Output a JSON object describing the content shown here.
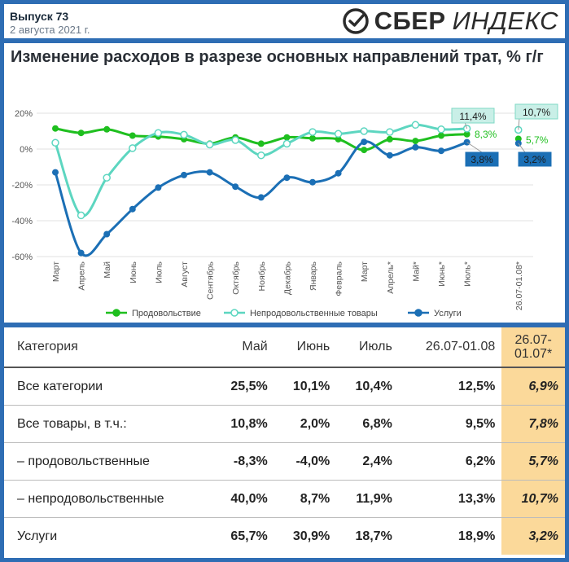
{
  "header": {
    "issue": "Выпуск 73",
    "date": "2 августа 2021 г.",
    "logo_sber": "СБЕР",
    "logo_index": "ИНДЕКС"
  },
  "chart_data": {
    "type": "line",
    "title": "Изменение расходов в разрезе основных направлений трат, % г/г",
    "categories": [
      "Март",
      "Апрель",
      "Май",
      "Июнь",
      "Июль",
      "Август",
      "Сентябрь",
      "Октябрь",
      "Ноябрь",
      "Декабрь",
      "Январь",
      "Февраль",
      "Март",
      "Апрель*",
      "Май*",
      "Июнь*",
      "Июль*",
      "",
      "26.07-01.08*"
    ],
    "yticks": [
      "20%",
      "0%",
      "-20%",
      "-40%",
      "-60%"
    ],
    "ylim": [
      -60,
      20
    ],
    "series": [
      {
        "name": "Продовольствие",
        "color": "#1fbf1f",
        "values": [
          11.5,
          9,
          11,
          7.5,
          7,
          5.5,
          3,
          6.5,
          3,
          6.5,
          6,
          5.5,
          -0.5,
          5.5,
          4.5,
          7.5,
          8.3,
          null,
          5.7
        ]
      },
      {
        "name": "Непродовольственные товары",
        "color": "#5dd6c0",
        "values": [
          3.5,
          -37,
          -16,
          0.5,
          9,
          8,
          2.5,
          5,
          -3.5,
          3,
          9.5,
          8.5,
          10,
          9.5,
          13.5,
          11,
          11.4,
          null,
          10.7
        ]
      },
      {
        "name": "Услуги",
        "color": "#1b6fb5",
        "values": [
          -13,
          -58,
          -47.5,
          -33.5,
          -21.5,
          -14.5,
          -13,
          -21,
          -27,
          -16,
          -18.5,
          -13.5,
          4,
          -3.5,
          1,
          -1,
          3.8,
          null,
          3.2
        ]
      }
    ],
    "annotations": {
      "food_july": "8,3%",
      "food_last": "5,7%",
      "nonfood_july": "11,4%",
      "nonfood_last": "10,7%",
      "services_july": "3,8%",
      "services_last": "3,2%"
    },
    "legend_position": "bottom"
  },
  "table": {
    "headers": [
      "Категория",
      "Май",
      "Июнь",
      "Июль",
      "26.07-01.08",
      "26.07-\n01.07*"
    ],
    "rows": [
      [
        "Все категории",
        "25,5%",
        "10,1%",
        "10,4%",
        "12,5%",
        "6,9%"
      ],
      [
        "Все товары, в т.ч.:",
        "10,8%",
        "2,0%",
        "6,8%",
        "9,5%",
        "7,8%"
      ],
      [
        "– продовольственные",
        "-8,3%",
        "-4,0%",
        "2,4%",
        "6,2%",
        "5,7%"
      ],
      [
        "– непродовольственные",
        "40,0%",
        "8,7%",
        "11,9%",
        "13,3%",
        "10,7%"
      ],
      [
        "Услуги",
        "65,7%",
        "30,9%",
        "18,7%",
        "18,9%",
        "3,2%"
      ]
    ]
  }
}
